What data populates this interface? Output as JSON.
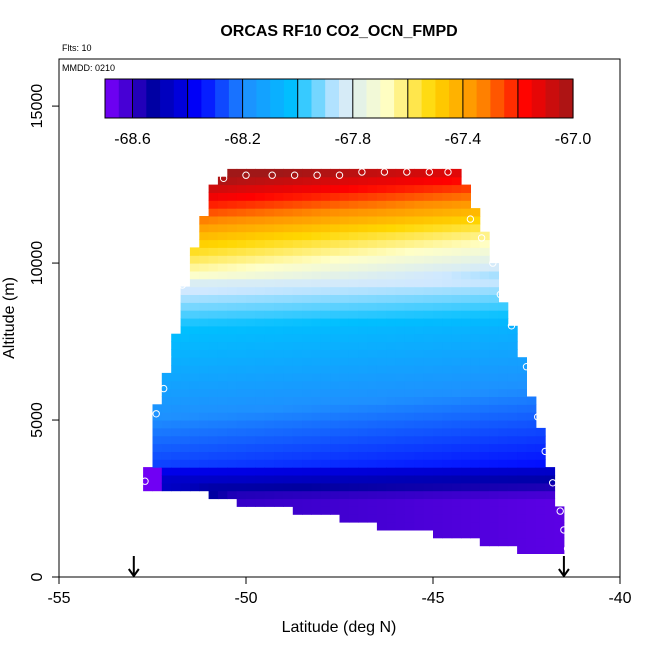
{
  "chart_data": {
    "type": "heatmap",
    "title": "ORCAS RF10 CO2_OCN_FMPD",
    "annotations": {
      "flights": "Flts: 10",
      "date": "MMDD: 0210"
    },
    "xlabel": "Latitude (deg N)",
    "ylabel": "Altitude (m)",
    "xlim": [
      -55,
      -40
    ],
    "ylim": [
      0,
      16500
    ],
    "x_ticks": [
      -55,
      -50,
      -45,
      -40
    ],
    "x_tick_labels": [
      "-55",
      "-50",
      "-45",
      "-40"
    ],
    "y_ticks": [
      0,
      5000,
      10000,
      15000
    ],
    "y_tick_labels": [
      "0",
      "5000",
      "10000",
      "15000"
    ],
    "colorbar": {
      "min": -68.7,
      "max": -67.0,
      "ticks": [
        -68.6,
        -68.2,
        -67.8,
        -67.4,
        -67.0
      ],
      "tick_labels": [
        "-68.6",
        "-68.2",
        "-67.8",
        "-67.4",
        "-67.0"
      ],
      "colors": [
        "#7f00ff",
        "#0000a0",
        "#0000ff",
        "#1e90ff",
        "#00bfff",
        "#cfe8ff",
        "#ffffc8",
        "#ffd700",
        "#ff8c00",
        "#ff0000",
        "#a01818"
      ]
    },
    "field": {
      "lat_min": -53.0,
      "lat_max": -41.6,
      "lat_step": 0.25,
      "alt_step": 250,
      "left_boundary": [
        [
          -52.7,
          3000
        ],
        [
          -52.5,
          4000
        ],
        [
          -52.4,
          5200
        ],
        [
          -52.2,
          6000
        ],
        [
          -52.0,
          7000
        ],
        [
          -51.8,
          8000
        ],
        [
          -51.6,
          9300
        ],
        [
          -51.4,
          10300
        ],
        [
          -51.2,
          11200
        ],
        [
          -50.9,
          12300
        ],
        [
          -50.6,
          12700
        ],
        [
          -50.3,
          12900
        ]
      ],
      "right_boundary": [
        [
          -44.4,
          12900
        ],
        [
          -44.0,
          12000
        ],
        [
          -43.6,
          10800
        ],
        [
          -43.4,
          10000
        ],
        [
          -43.2,
          9000
        ],
        [
          -42.9,
          8000
        ],
        [
          -42.6,
          6800
        ],
        [
          -42.3,
          5200
        ],
        [
          -42.0,
          4000
        ],
        [
          -41.8,
          3000
        ],
        [
          -41.6,
          2100
        ],
        [
          -41.6,
          1500
        ],
        [
          -41.4,
          800
        ]
      ],
      "bottom_boundary": [
        [
          -52.7,
          3000
        ],
        [
          -51.5,
          2900
        ],
        [
          -50.3,
          2500
        ],
        [
          -49.0,
          2300
        ],
        [
          -47.5,
          2000
        ],
        [
          -46.3,
          1700
        ],
        [
          -45.0,
          1500
        ],
        [
          -43.8,
          1300
        ],
        [
          -42.8,
          1000
        ],
        [
          -41.8,
          900
        ],
        [
          -41.4,
          800
        ]
      ]
    },
    "flight_points": [
      [
        -52.7,
        3050
      ],
      [
        -52.6,
        4000
      ],
      [
        -52.4,
        5200
      ],
      [
        -52.2,
        6000
      ],
      [
        -52.1,
        7000
      ],
      [
        -51.9,
        8000
      ],
      [
        -51.7,
        9300
      ],
      [
        -51.4,
        11100
      ],
      [
        -51.1,
        12300
      ],
      [
        -50.6,
        12700
      ],
      [
        -50.0,
        12800
      ],
      [
        -49.3,
        12800
      ],
      [
        -48.7,
        12800
      ],
      [
        -48.1,
        12800
      ],
      [
        -47.5,
        12800
      ],
      [
        -46.9,
        12900
      ],
      [
        -46.3,
        12900
      ],
      [
        -45.7,
        12900
      ],
      [
        -45.1,
        12900
      ],
      [
        -44.6,
        12900
      ],
      [
        -44.0,
        11400
      ],
      [
        -43.7,
        10800
      ],
      [
        -43.4,
        10000
      ],
      [
        -43.2,
        9000
      ],
      [
        -42.9,
        8000
      ],
      [
        -42.6,
        7200
      ],
      [
        -42.5,
        6700
      ],
      [
        -42.2,
        5100
      ],
      [
        -42.0,
        4000
      ],
      [
        -41.8,
        3000
      ],
      [
        -41.6,
        2100
      ],
      [
        -41.5,
        1500
      ],
      [
        -41.4,
        900
      ]
    ],
    "markers": [
      {
        "name": "start-arrow",
        "lat": -53.0
      },
      {
        "name": "end-arrow",
        "lat": -41.5
      }
    ]
  }
}
